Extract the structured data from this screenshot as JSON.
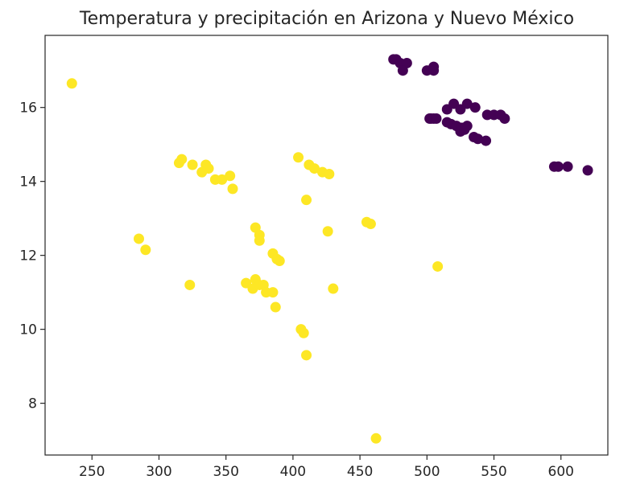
{
  "chart_data": {
    "type": "scatter",
    "title": "Temperatura y precipitación en Arizona y Nuevo México",
    "xlabel": "",
    "ylabel": "",
    "xlim": [
      215,
      635
    ],
    "ylim": [
      6.6,
      17.95
    ],
    "xticks": [
      250,
      300,
      350,
      400,
      450,
      500,
      550,
      600
    ],
    "yticks": [
      8,
      10,
      12,
      14,
      16
    ],
    "grid": false,
    "colors": {
      "group_a": "#440154",
      "group_b": "#fde725",
      "axes": "#262626"
    },
    "series": [
      {
        "color_key": "group_a",
        "points": [
          [
            475,
            17.3
          ],
          [
            477,
            17.3
          ],
          [
            480,
            17.2
          ],
          [
            485,
            17.2
          ],
          [
            482,
            17.0
          ],
          [
            500,
            17.0
          ],
          [
            505,
            17.1
          ],
          [
            505,
            17.0
          ],
          [
            502,
            15.7
          ],
          [
            503,
            15.7
          ],
          [
            505,
            15.7
          ],
          [
            507,
            15.7
          ],
          [
            515,
            15.95
          ],
          [
            520,
            16.1
          ],
          [
            525,
            15.95
          ],
          [
            530,
            16.1
          ],
          [
            536,
            16.0
          ],
          [
            545,
            15.8
          ],
          [
            550,
            15.8
          ],
          [
            555,
            15.8
          ],
          [
            558,
            15.7
          ],
          [
            515,
            15.6
          ],
          [
            518,
            15.55
          ],
          [
            522,
            15.5
          ],
          [
            526,
            15.45
          ],
          [
            530,
            15.5
          ],
          [
            525,
            15.35
          ],
          [
            528,
            15.4
          ],
          [
            535,
            15.2
          ],
          [
            538,
            15.15
          ],
          [
            544,
            15.1
          ],
          [
            595,
            14.4
          ],
          [
            598,
            14.4
          ],
          [
            605,
            14.4
          ],
          [
            620,
            14.3
          ]
        ]
      },
      {
        "color_key": "group_b",
        "points": [
          [
            235,
            16.65
          ],
          [
            315,
            14.5
          ],
          [
            317,
            14.6
          ],
          [
            325,
            14.45
          ],
          [
            335,
            14.45
          ],
          [
            337,
            14.35
          ],
          [
            332,
            14.25
          ],
          [
            342,
            14.05
          ],
          [
            347,
            14.05
          ],
          [
            353,
            14.15
          ],
          [
            355,
            13.8
          ],
          [
            404,
            14.65
          ],
          [
            412,
            14.45
          ],
          [
            416,
            14.35
          ],
          [
            422,
            14.25
          ],
          [
            427,
            14.2
          ],
          [
            410,
            13.5
          ],
          [
            285,
            12.45
          ],
          [
            290,
            12.15
          ],
          [
            323,
            11.2
          ],
          [
            372,
            12.75
          ],
          [
            375,
            12.55
          ],
          [
            375,
            12.4
          ],
          [
            385,
            12.05
          ],
          [
            388,
            11.9
          ],
          [
            390,
            11.85
          ],
          [
            426,
            12.65
          ],
          [
            455,
            12.9
          ],
          [
            458,
            12.85
          ],
          [
            508,
            11.7
          ],
          [
            365,
            11.25
          ],
          [
            370,
            11.1
          ],
          [
            372,
            11.35
          ],
          [
            375,
            11.2
          ],
          [
            378,
            11.2
          ],
          [
            380,
            11.0
          ],
          [
            385,
            11.0
          ],
          [
            430,
            11.1
          ],
          [
            387,
            10.6
          ],
          [
            406,
            10.0
          ],
          [
            408,
            9.9
          ],
          [
            410,
            9.3
          ],
          [
            462,
            7.05
          ]
        ]
      }
    ]
  }
}
